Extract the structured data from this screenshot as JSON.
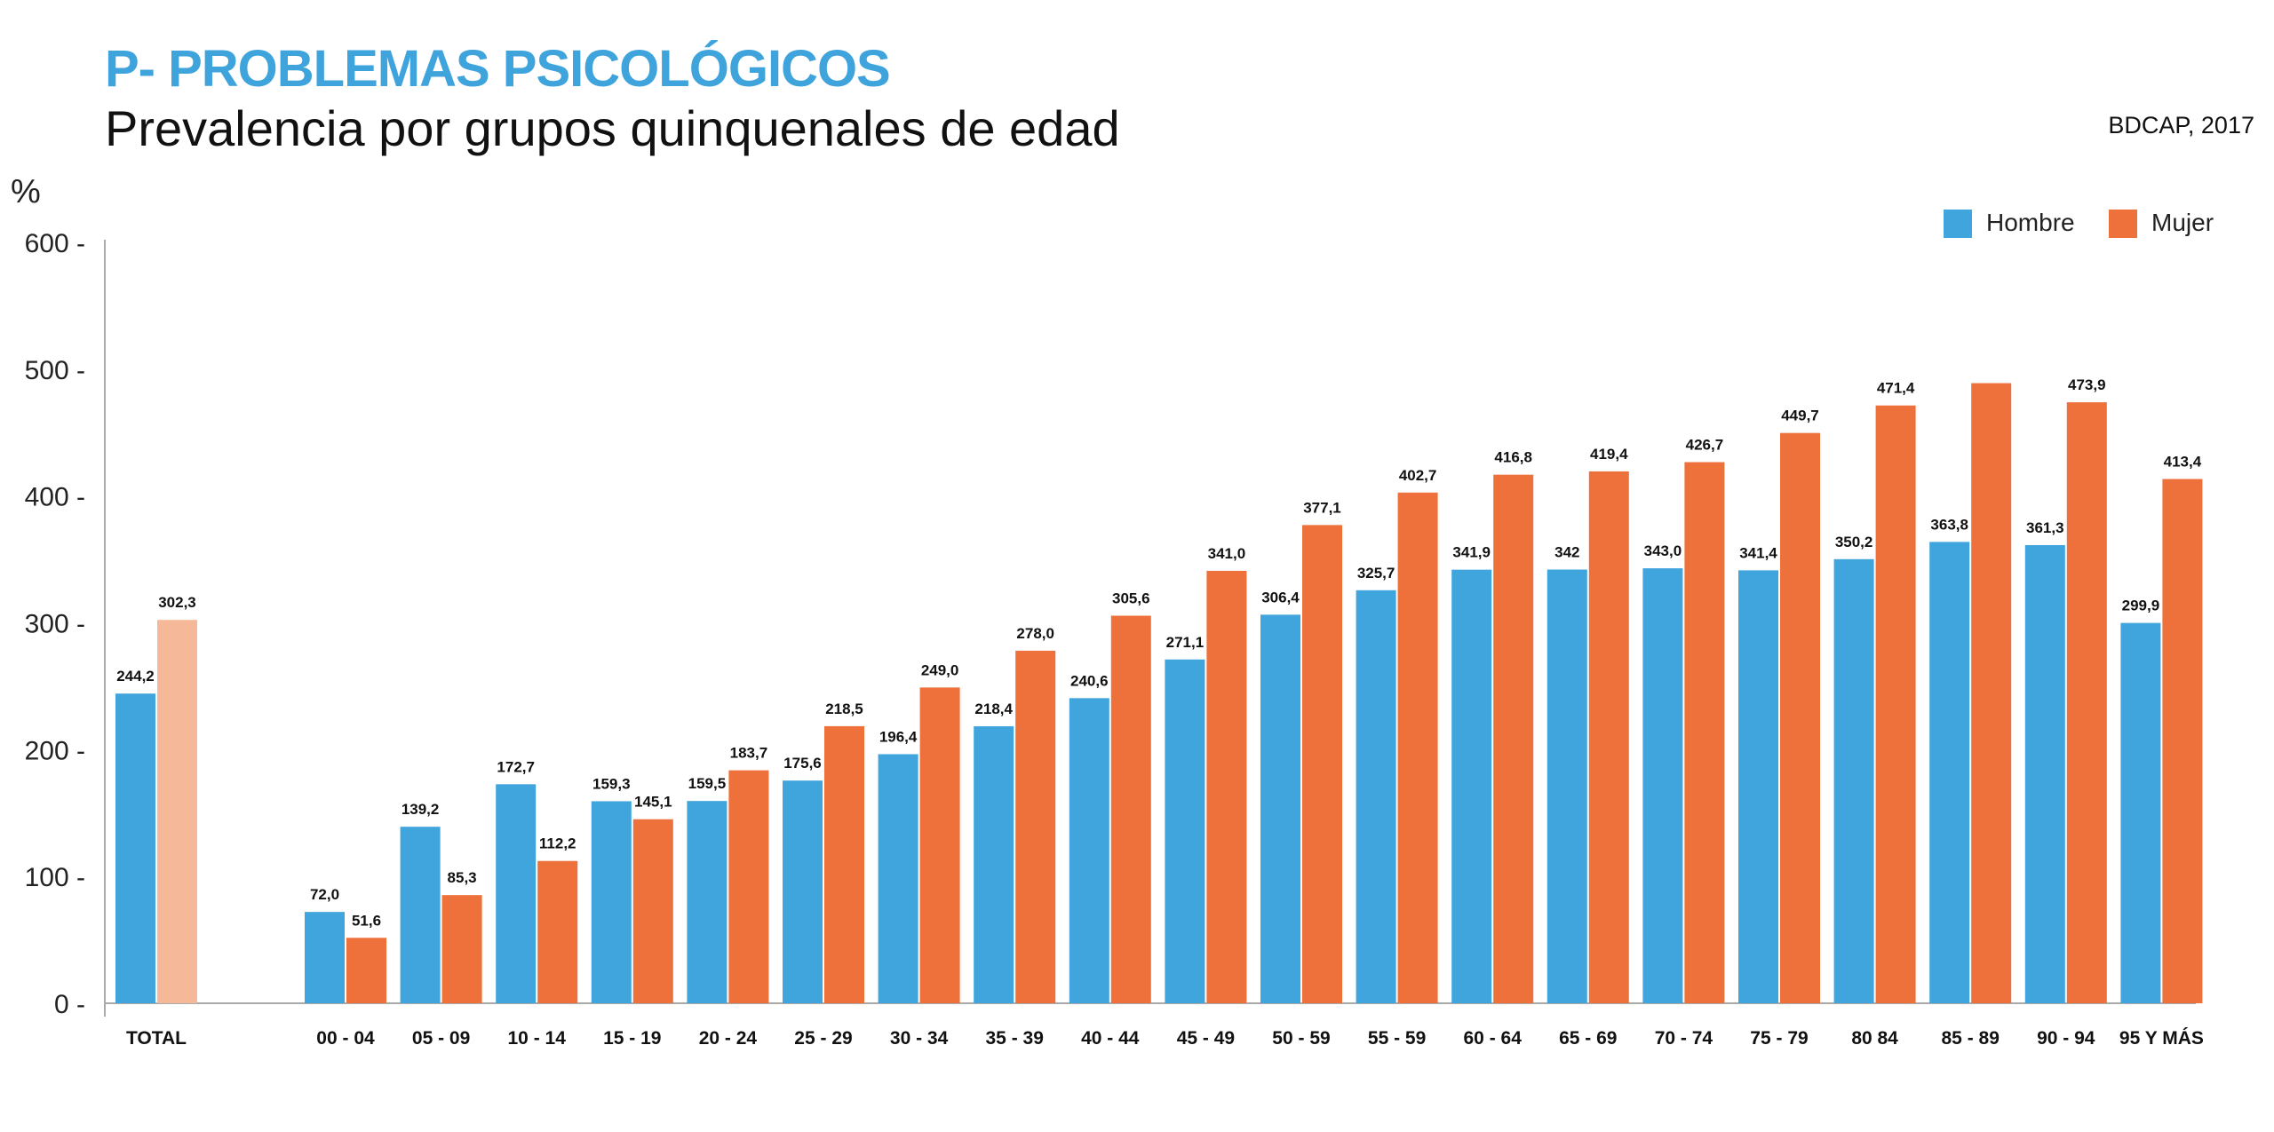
{
  "header": {
    "title": "P- PROBLEMAS PSICOLÓGICOS",
    "subtitle": "Prevalencia por grupos quinquenales de edad",
    "source": "BDCAP, 2017"
  },
  "colors": {
    "hombre": "#40a4dd",
    "mujer": "#ee703a",
    "mujer_total": "#f5b899",
    "title": "#3fa3dc"
  },
  "chart_data": {
    "type": "bar",
    "ylabel": "%",
    "ylim": [
      0,
      600
    ],
    "yticks": [
      "0 -",
      "100 -",
      "200 -",
      "300 -",
      "400 -",
      "500 -",
      "600 -"
    ],
    "grid": false,
    "legend_position": "top-right",
    "categories": [
      "TOTAL",
      "00 - 04",
      "05 - 09",
      "10 - 14",
      "15 - 19",
      "20 - 24",
      "25 - 29",
      "30 - 34",
      "35 - 39",
      "40 - 44",
      "45 - 49",
      "50 - 59",
      "55 - 59",
      "60 - 64",
      "65 - 69",
      "70 - 74",
      "75 - 79",
      "80 84",
      "85 - 89",
      "90 - 94",
      "95 Y MÁS"
    ],
    "series": [
      {
        "name": "Hombre",
        "values": [
          244.2,
          72.0,
          139.2,
          172.7,
          159.3,
          159.5,
          175.6,
          196.4,
          218.4,
          240.6,
          271.1,
          306.4,
          325.7,
          341.9,
          342,
          343.0,
          341.4,
          350.2,
          363.8,
          361.3,
          299.9
        ],
        "labels": [
          "244,2",
          "72,0",
          "139,2",
          "172,7",
          "159,3",
          "159,5",
          "175,6",
          "196,4",
          "218,4",
          "240,6",
          "271,1",
          "306,4",
          "325,7",
          "341,9",
          "342",
          "343,0",
          "341,4",
          "350,2",
          "363,8",
          "361,3",
          "299,9"
        ]
      },
      {
        "name": "Mujer",
        "values": [
          302.3,
          51.6,
          85.3,
          112.2,
          145.1,
          183.7,
          218.5,
          249.0,
          278.0,
          305.6,
          341.0,
          377.1,
          402.7,
          416.8,
          419.4,
          426.7,
          449.7,
          471.4,
          489.0,
          473.9,
          413.4
        ],
        "labels": [
          "302,3",
          "51,6",
          "85,3",
          "112,2",
          "145,1",
          "183,7",
          "218,5",
          "249,0",
          "278,0",
          "305,6",
          "341,0",
          "377,1",
          "402,7",
          "416,8",
          "419,4",
          "426,7",
          "449,7",
          "471,4",
          "",
          "473,9",
          "413,4"
        ]
      }
    ]
  }
}
